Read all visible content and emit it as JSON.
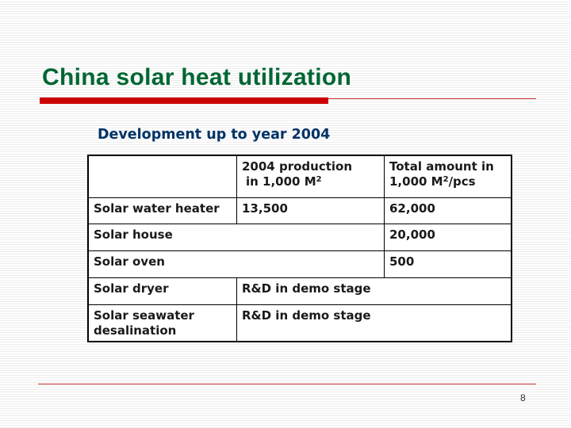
{
  "slide": {
    "title": "China solar heat utilization",
    "subtitle": "Development up to year 2004",
    "page_number": "8"
  },
  "table": {
    "header": {
      "col1": "",
      "col2_line1": "2004 production",
      "col2_line2": "in 1,000 M",
      "col2_sup": "2",
      "col3_line1": "Total amount in",
      "col3_line2": "1,000 M",
      "col3_sup": "2",
      "col3_suffix": "/pcs"
    },
    "rows": [
      {
        "label": "Solar water heater",
        "production": "13,500",
        "total": "62,000"
      },
      {
        "label": "Solar house",
        "production": "",
        "total": "20,000"
      },
      {
        "label": "Solar oven",
        "production": "",
        "total": "500"
      },
      {
        "label": "Solar dryer",
        "note": "R&D in demo stage"
      },
      {
        "label_line1": "Solar seawater",
        "label_line2": "desalination",
        "note": "R&D in demo stage"
      }
    ]
  },
  "colors": {
    "title": "#006633",
    "subtitle": "#003366",
    "accent_bar": "#cc0000",
    "rule_line": "#cc3333"
  }
}
